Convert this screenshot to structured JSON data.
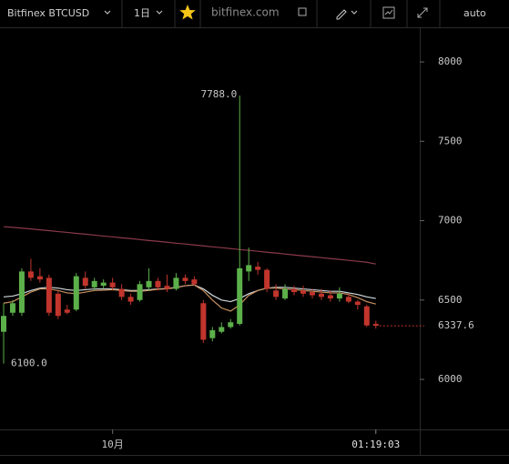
{
  "toolbar": {
    "symbol": "Bitfinex BTCUSD",
    "interval": "1日",
    "watermark": "bitfinex.com",
    "scale_mode": "auto"
  },
  "chart_data": {
    "type": "candlestick",
    "categories": [
      null,
      null,
      null,
      null,
      null,
      null,
      null,
      null,
      null,
      null,
      null,
      null,
      "10月",
      null,
      null,
      null,
      null,
      null,
      null,
      null,
      null,
      null,
      null,
      null,
      null,
      null,
      null,
      null,
      null,
      null,
      null,
      null,
      null,
      null,
      null,
      null,
      null,
      null,
      null,
      null,
      null,
      null
    ],
    "open": [
      6300,
      6420,
      6420,
      6680,
      6650,
      6640,
      6540,
      6440,
      6440,
      6640,
      6580,
      6590,
      6610,
      6570,
      6520,
      6500,
      6580,
      6620,
      6590,
      6570,
      6640,
      6630,
      6480,
      6260,
      6300,
      6330,
      6350,
      6680,
      6710,
      6690,
      6560,
      6510,
      6570,
      6560,
      6550,
      6540,
      6530,
      6510,
      6520,
      6490,
      6460,
      6350
    ],
    "high": [
      6480,
      6500,
      6700,
      6760,
      6700,
      6660,
      6560,
      6470,
      6670,
      6680,
      6640,
      6630,
      6640,
      6600,
      6540,
      6620,
      6700,
      6640,
      6660,
      6670,
      6660,
      6650,
      6500,
      6330,
      6360,
      6380,
      7788,
      6830,
      6740,
      6700,
      6600,
      6600,
      6590,
      6590,
      6570,
      6570,
      6560,
      6580,
      6540,
      6500,
      6470,
      6370
    ],
    "low": [
      6100,
      6400,
      6400,
      6620,
      6610,
      6400,
      6380,
      6410,
      6430,
      6570,
      6560,
      6570,
      6560,
      6500,
      6470,
      6490,
      6560,
      6560,
      6550,
      6560,
      6600,
      6590,
      6230,
      6240,
      6290,
      6320,
      6340,
      6620,
      6660,
      6550,
      6500,
      6500,
      6530,
      6520,
      6510,
      6500,
      6490,
      6490,
      6480,
      6440,
      6330,
      6320
    ],
    "close": [
      6400,
      6480,
      6680,
      6640,
      6630,
      6420,
      6400,
      6420,
      6650,
      6590,
      6620,
      6610,
      6580,
      6520,
      6490,
      6600,
      6620,
      6580,
      6570,
      6640,
      6620,
      6600,
      6250,
      6310,
      6330,
      6360,
      6700,
      6720,
      6690,
      6570,
      6520,
      6570,
      6550,
      6540,
      6530,
      6520,
      6510,
      6540,
      6490,
      6470,
      6340,
      6337.6
    ],
    "up_color": "#5cb04a",
    "down_color": "#c1352c",
    "series": [
      {
        "color": "#8a3a4a",
        "values": [
          6962,
          6958,
          6953,
          6948,
          6942,
          6937,
          6931,
          6926,
          6920,
          6915,
          6909,
          6903,
          6898,
          6892,
          6887,
          6881,
          6875,
          6870,
          6864,
          6858,
          6853,
          6847,
          6841,
          6835,
          6830,
          6824,
          6818,
          6813,
          6807,
          6801,
          6796,
          6790,
          6784,
          6778,
          6773,
          6767,
          6761,
          6756,
          6750,
          6744,
          6738,
          6727
        ]
      },
      {
        "color": "#cfd8dc",
        "values": [
          6520,
          6525,
          6540,
          6560,
          6575,
          6580,
          6575,
          6565,
          6560,
          6565,
          6570,
          6570,
          6570,
          6565,
          6560,
          6560,
          6565,
          6570,
          6572,
          6580,
          6590,
          6595,
          6570,
          6530,
          6500,
          6490,
          6510,
          6540,
          6560,
          6575,
          6580,
          6580,
          6575,
          6570,
          6565,
          6560,
          6555,
          6555,
          6545,
          6535,
          6520,
          6510
        ]
      },
      {
        "color": "#c89060",
        "values": [
          6480,
          6490,
          6520,
          6550,
          6570,
          6570,
          6560,
          6545,
          6540,
          6550,
          6560,
          6562,
          6565,
          6560,
          6555,
          6555,
          6560,
          6568,
          6570,
          6578,
          6590,
          6595,
          6560,
          6500,
          6450,
          6430,
          6470,
          6530,
          6560,
          6575,
          6575,
          6570,
          6565,
          6560,
          6555,
          6550,
          6545,
          6545,
          6535,
          6515,
          6490,
          6475
        ]
      }
    ],
    "annotations": [
      {
        "value": 7788,
        "label": "7788.0",
        "index": 26
      },
      {
        "value": 6100,
        "label": "6100.0",
        "index": 0
      }
    ],
    "last_price": 6337.6,
    "countdown": "01:19:03",
    "ylim": [
      5685,
      8218
    ],
    "yticks": [
      6000,
      6500,
      7000,
      7500,
      8000
    ]
  }
}
